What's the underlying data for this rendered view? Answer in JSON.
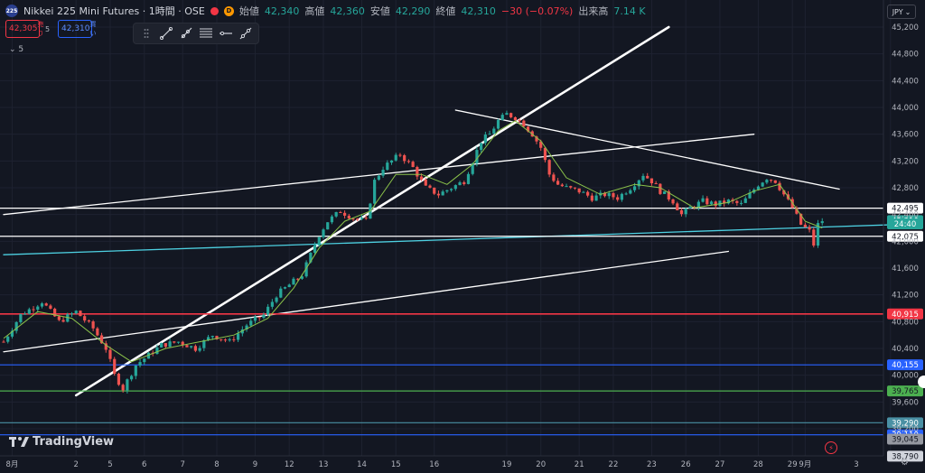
{
  "header": {
    "symbol_badge": "225",
    "title": "Nikkei 225 Mini Futures · 1時間 · OSE",
    "open_label": "始値",
    "open": "42,340",
    "high_label": "高値",
    "high": "42,360",
    "low_label": "安値",
    "low": "42,290",
    "close_label": "終値",
    "close": "42,310",
    "change": "−30 (−0.07%)",
    "volume_label": "出来高",
    "volume": "7.14 K",
    "d_badge": "D"
  },
  "trade": {
    "sell_price": "42,305",
    "sell_label": "売り",
    "spread": "5",
    "buy_price": "42,310",
    "buy_label": "買い"
  },
  "indicator_toggle": "5",
  "currency": "JPY",
  "logo_text": "TradingView",
  "colors": {
    "bg": "#131722",
    "grid": "#1e2230",
    "up": "#26a69a",
    "down": "#ef5350",
    "ma": "#8bc34a",
    "red_line": "#f23645",
    "blue_line": "#2962ff",
    "green_line": "#4caf50",
    "cyan_line": "#4dd0e1",
    "white": "#ffffff"
  },
  "chart_data": {
    "type": "candlestick",
    "y_ticks": [
      45200,
      44800,
      44400,
      44000,
      43600,
      43200,
      42800,
      42400,
      42000,
      41600,
      41200,
      40800,
      40400,
      40000,
      39600,
      39200
    ],
    "y_tick_labels": [
      "45,200",
      "44,800",
      "44,400",
      "44,000",
      "43,600",
      "43,200",
      "42,800",
      "42,400",
      "42,000",
      "41,600",
      "41,200",
      "40,800",
      "40,400",
      "40,000",
      "39,600",
      "39,200"
    ],
    "ylim": [
      38700,
      45300
    ],
    "x_labels": [
      "8月",
      "2",
      "5",
      "6",
      "7",
      "8",
      "9",
      "12",
      "13",
      "14",
      "15",
      "16",
      "19",
      "20",
      "21",
      "22",
      "23",
      "26",
      "27",
      "28",
      "29",
      "9月",
      "3"
    ],
    "price_levels": [
      {
        "value": 42495,
        "label": "42,495",
        "color": "#ffffff",
        "text_color": "#131722",
        "line": true
      },
      {
        "value": 42310,
        "label": "42,310",
        "color": "#26a69a",
        "text_color": "#ffffff",
        "line": false
      },
      {
        "value": 42260,
        "label": "24:40",
        "color": "#26a69a",
        "text_color": "#ffffff",
        "line": false
      },
      {
        "value": 42075,
        "label": "42,075",
        "color": "#ffffff",
        "text_color": "#131722",
        "line": true
      },
      {
        "value": 40915,
        "label": "40,915",
        "color": "#f23645",
        "text_color": "#ffffff",
        "line": true
      },
      {
        "value": 40155,
        "label": "40,155",
        "color": "#2962ff",
        "text_color": "#ffffff",
        "line": true
      },
      {
        "value": 39765,
        "label": "39,765",
        "color": "#4caf50",
        "text_color": "#131722",
        "line": true
      },
      {
        "value": 39290,
        "label": "39,290",
        "color": "#4a90a4",
        "text_color": "#ffffff",
        "line": true
      },
      {
        "value": 39110,
        "label": "39,110",
        "color": "#2962ff",
        "text_color": "#ffffff",
        "line": true
      },
      {
        "value": 39045,
        "label": "39,045",
        "color": "#9598a1",
        "text_color": "#131722",
        "line": false
      },
      {
        "value": 38790,
        "label": "38,790",
        "color": "#d1d4dc",
        "text_color": "#131722",
        "line": false
      }
    ],
    "path_points": [
      [
        0,
        40500
      ],
      [
        4,
        40900
      ],
      [
        9,
        41100
      ],
      [
        13,
        40800
      ],
      [
        17,
        40950
      ],
      [
        21,
        40700
      ],
      [
        24,
        40400
      ],
      [
        26,
        40000
      ],
      [
        28,
        39800
      ],
      [
        31,
        40150
      ],
      [
        34,
        40300
      ],
      [
        37,
        40450
      ],
      [
        41,
        40500
      ],
      [
        45,
        40400
      ],
      [
        49,
        40600
      ],
      [
        53,
        40500
      ],
      [
        57,
        40750
      ],
      [
        61,
        40900
      ],
      [
        64,
        41200
      ],
      [
        67,
        41350
      ],
      [
        70,
        41500
      ],
      [
        72,
        41800
      ],
      [
        74,
        42100
      ],
      [
        76,
        42300
      ],
      [
        79,
        42450
      ],
      [
        82,
        42350
      ],
      [
        85,
        42300
      ],
      [
        87,
        42900
      ],
      [
        89,
        43100
      ],
      [
        91,
        43200
      ],
      [
        93,
        43300
      ],
      [
        96,
        43100
      ],
      [
        99,
        42800
      ],
      [
        102,
        42700
      ],
      [
        105,
        42800
      ],
      [
        108,
        42900
      ],
      [
        110,
        43200
      ],
      [
        112,
        43500
      ],
      [
        114,
        43600
      ],
      [
        116,
        43800
      ],
      [
        118,
        43900
      ],
      [
        120,
        43850
      ],
      [
        122,
        43750
      ],
      [
        124,
        43600
      ],
      [
        126,
        43400
      ],
      [
        128,
        43000
      ],
      [
        130,
        42850
      ],
      [
        132,
        42800
      ],
      [
        135,
        42750
      ],
      [
        138,
        42650
      ],
      [
        141,
        42700
      ],
      [
        144,
        42650
      ],
      [
        147,
        42800
      ],
      [
        150,
        43000
      ],
      [
        152,
        42900
      ],
      [
        154,
        42750
      ],
      [
        157,
        42600
      ],
      [
        159,
        42400
      ],
      [
        161,
        42500
      ],
      [
        164,
        42600
      ],
      [
        167,
        42550
      ],
      [
        170,
        42600
      ],
      [
        173,
        42550
      ],
      [
        175,
        42700
      ],
      [
        177,
        42850
      ],
      [
        179,
        42950
      ],
      [
        181,
        42900
      ],
      [
        183,
        42700
      ],
      [
        185,
        42500
      ],
      [
        187,
        42250
      ],
      [
        189,
        42150
      ],
      [
        190,
        41950
      ],
      [
        191,
        42250
      ],
      [
        192,
        42310
      ]
    ],
    "ma_points": [
      [
        0,
        40550
      ],
      [
        8,
        40950
      ],
      [
        16,
        40850
      ],
      [
        24,
        40450
      ],
      [
        30,
        40200
      ],
      [
        38,
        40400
      ],
      [
        46,
        40500
      ],
      [
        54,
        40600
      ],
      [
        62,
        40850
      ],
      [
        68,
        41300
      ],
      [
        74,
        41900
      ],
      [
        80,
        42300
      ],
      [
        86,
        42450
      ],
      [
        92,
        43000
      ],
      [
        98,
        43000
      ],
      [
        104,
        42850
      ],
      [
        110,
        43150
      ],
      [
        116,
        43650
      ],
      [
        120,
        43800
      ],
      [
        126,
        43500
      ],
      [
        132,
        42950
      ],
      [
        140,
        42700
      ],
      [
        148,
        42850
      ],
      [
        154,
        42800
      ],
      [
        162,
        42500
      ],
      [
        170,
        42580
      ],
      [
        176,
        42750
      ],
      [
        182,
        42850
      ],
      [
        188,
        42300
      ],
      [
        192,
        42200
      ]
    ],
    "n_bars": 193,
    "x_label_bars": [
      2,
      17,
      25,
      33,
      42,
      50,
      59,
      67,
      75,
      84,
      92,
      101,
      118,
      126,
      135,
      143,
      152,
      160,
      168,
      177,
      185,
      188,
      208
    ],
    "trendlines": [
      {
        "p1": [
          0,
          40350
        ],
        "p2": [
          170,
          41850
        ],
        "width": 1.3,
        "color": "#ffffff"
      },
      {
        "p1": [
          0,
          42400
        ],
        "p2": [
          176,
          43600
        ],
        "width": 1.3,
        "color": "#ffffff"
      },
      {
        "p1": [
          17,
          39700
        ],
        "p2": [
          156,
          45200
        ],
        "width": 2.6,
        "color": "#ffffff"
      },
      {
        "p1": [
          106,
          43960
        ],
        "p2": [
          196,
          42780
        ],
        "width": 1.3,
        "color": "#ffffff"
      },
      {
        "p1": [
          0,
          41800
        ],
        "p2": [
          214,
          42260
        ],
        "width": 1.3,
        "color": "#4dd0e1"
      }
    ]
  }
}
